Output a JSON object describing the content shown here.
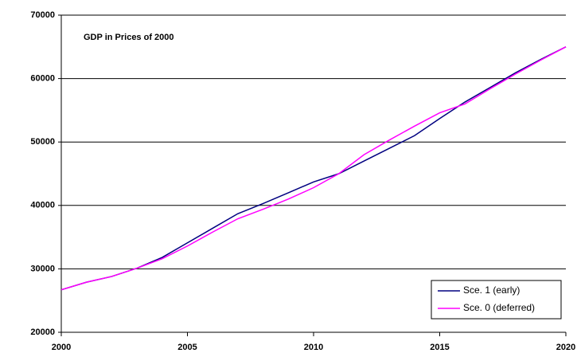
{
  "chart_data": {
    "type": "line",
    "title": "GDP in Prices of 2000",
    "x": [
      2000,
      2001,
      2002,
      2003,
      2004,
      2005,
      2006,
      2007,
      2008,
      2009,
      2010,
      2011,
      2012,
      2013,
      2014,
      2015,
      2016,
      2017,
      2018,
      2019,
      2020
    ],
    "series": [
      {
        "name": "Sce. 1 (early)",
        "color": "#000080",
        "values": [
          26700,
          27900,
          28800,
          30100,
          31800,
          34100,
          36400,
          38700,
          40300,
          42000,
          43700,
          45000,
          47000,
          49000,
          51000,
          53700,
          56300,
          58600,
          60900,
          63000,
          65000
        ]
      },
      {
        "name": "Sce. 0 (deferred)",
        "color": "#ff00ff",
        "values": [
          26700,
          27900,
          28800,
          30100,
          31600,
          33600,
          35800,
          37900,
          39400,
          41000,
          42800,
          45000,
          48000,
          50300,
          52500,
          54600,
          56000,
          58400,
          60700,
          62900,
          65000
        ]
      }
    ],
    "xlim": [
      2000,
      2020
    ],
    "xticks": [
      2000,
      2005,
      2010,
      2015,
      2020
    ],
    "ylim": [
      20000,
      70000
    ],
    "yticks": [
      20000,
      30000,
      40000,
      50000,
      60000,
      70000
    ],
    "grid": true,
    "legend": "lower right"
  }
}
